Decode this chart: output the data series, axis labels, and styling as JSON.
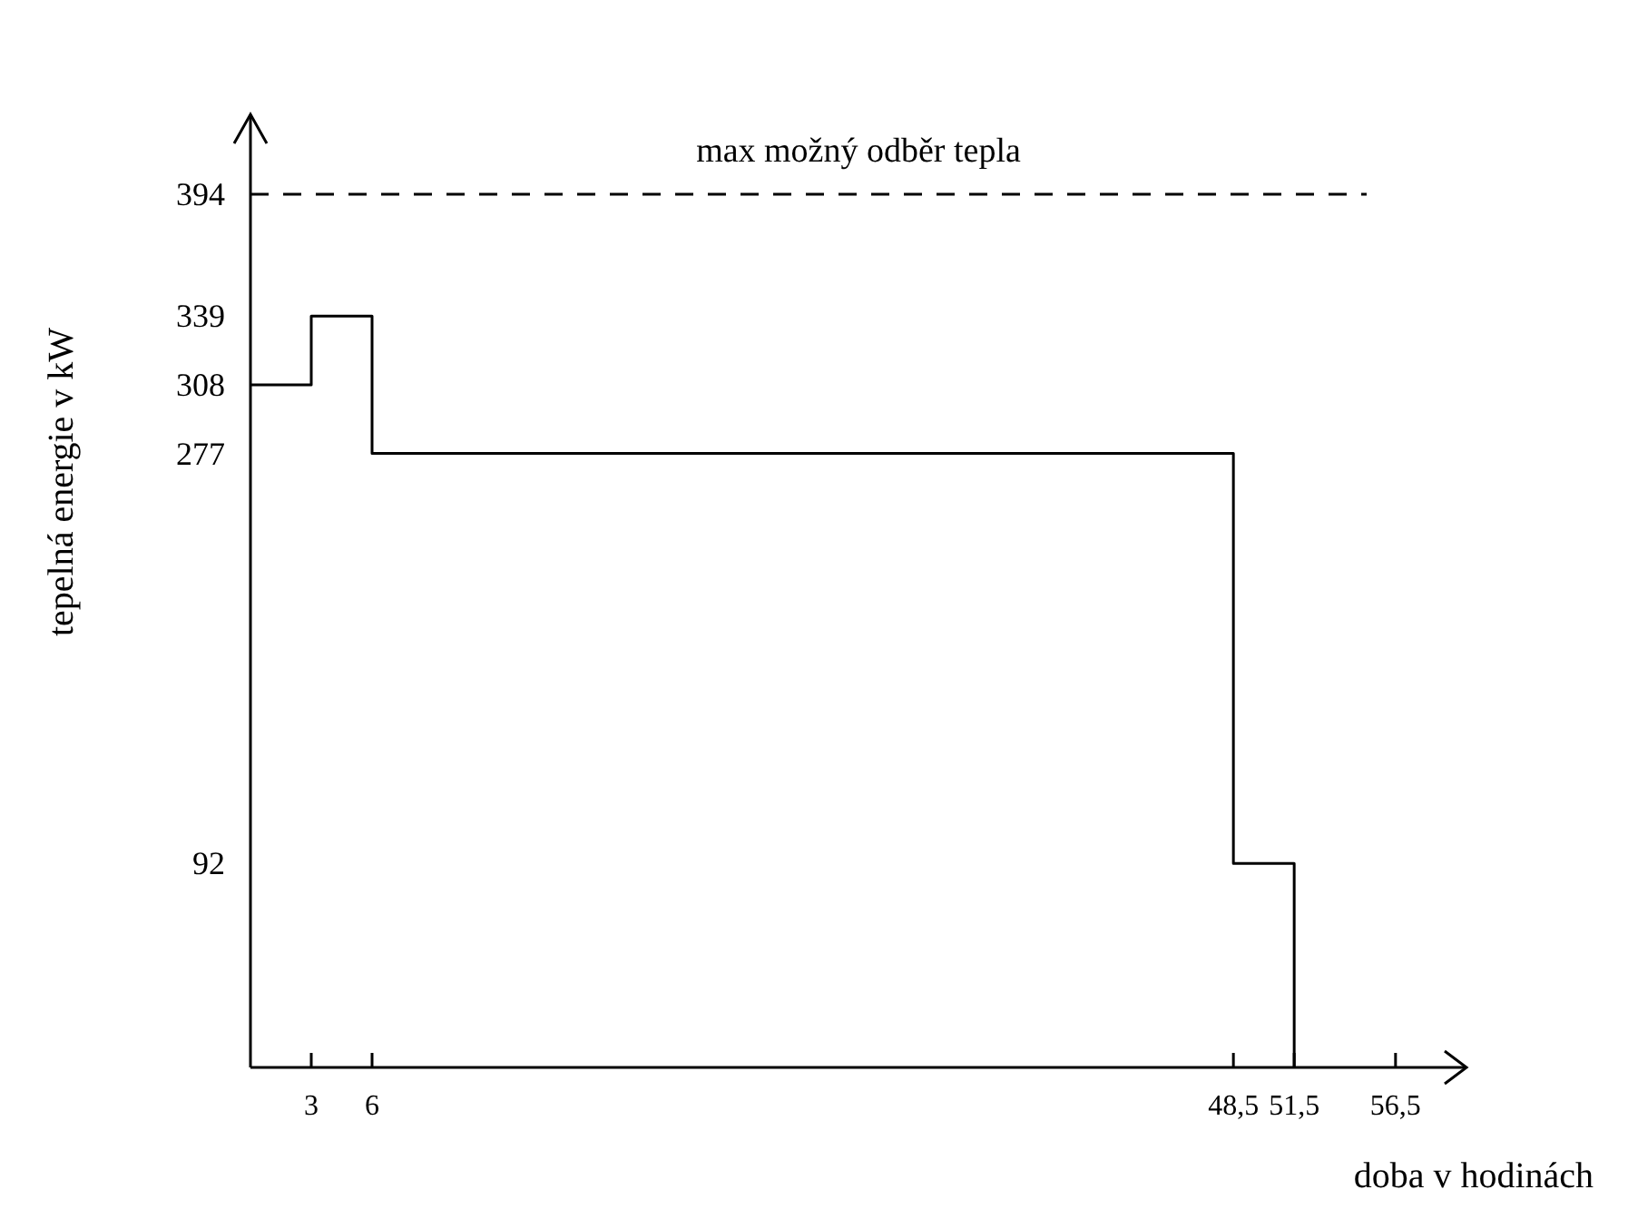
{
  "chart_data": {
    "type": "step",
    "xlabel": "doba v hodinách",
    "ylabel": "tepelná energie v kW",
    "x": [
      0,
      3,
      6,
      48.5,
      51.5
    ],
    "series": [
      {
        "color": "#000000",
        "values": [
          308,
          339,
          277,
          92,
          0
        ]
      }
    ],
    "xlim": [
      0,
      60
    ],
    "ylim": [
      0,
      430
    ],
    "xticks": [
      3,
      6,
      {
        "value": 48.5,
        "label": "48,5"
      },
      {
        "value": 51.5,
        "label": "51,5"
      },
      {
        "value": 56.5,
        "label": "56,5"
      }
    ],
    "yticks": [
      92,
      277,
      308,
      339,
      394
    ],
    "ref_lines": [
      {
        "axis": "y",
        "value": 394,
        "label": "max možný odběr tepla",
        "color": "#000000",
        "line_style": "dashed"
      }
    ],
    "grid": false
  }
}
